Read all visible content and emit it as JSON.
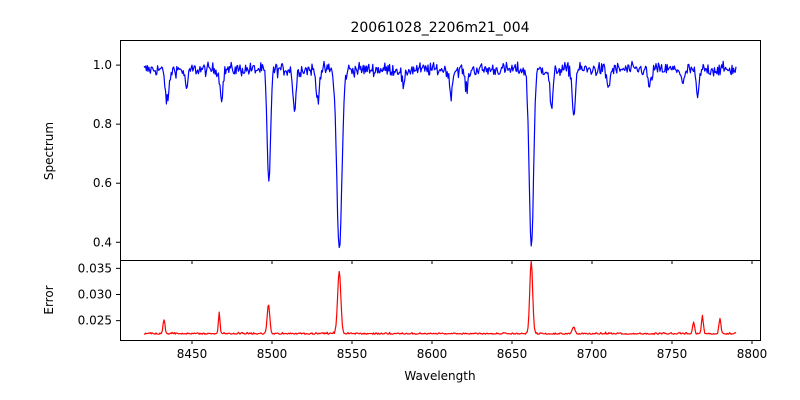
{
  "chart_data": {
    "type": "line",
    "title": "20061028_2206m21_004",
    "xlabel": "Wavelength",
    "xlim": [
      8405,
      8805
    ],
    "xticks": [
      8450,
      8500,
      8550,
      8600,
      8650,
      8700,
      8750,
      8800
    ],
    "x_range": [
      8420,
      8790
    ],
    "grid": false,
    "panels": [
      {
        "name": "spectrum",
        "ylabel": "Spectrum",
        "ylim": [
          0.34,
          1.085
        ],
        "yticks": [
          0.4,
          0.6,
          0.8,
          1.0
        ],
        "tick_format": "1",
        "color": "#0000ff",
        "continuum": 0.985,
        "noise": 0.022,
        "lines": [
          {
            "center": 8434.5,
            "depth": 0.11,
            "width": 1.2
          },
          {
            "center": 8446.6,
            "depth": 0.06,
            "width": 1.0
          },
          {
            "center": 8468.4,
            "depth": 0.09,
            "width": 1.0
          },
          {
            "center": 8498.0,
            "depth": 0.39,
            "width": 1.05
          },
          {
            "center": 8514.1,
            "depth": 0.14,
            "width": 0.9
          },
          {
            "center": 8528.5,
            "depth": 0.1,
            "width": 1.0
          },
          {
            "center": 8542.1,
            "depth": 0.61,
            "width": 1.6
          },
          {
            "center": 8582.3,
            "depth": 0.06,
            "width": 1.0
          },
          {
            "center": 8611.8,
            "depth": 0.08,
            "width": 1.0
          },
          {
            "center": 8621.6,
            "depth": 0.07,
            "width": 1.0
          },
          {
            "center": 8662.1,
            "depth": 0.6,
            "width": 1.35
          },
          {
            "center": 8674.7,
            "depth": 0.13,
            "width": 1.0
          },
          {
            "center": 8688.6,
            "depth": 0.16,
            "width": 0.9
          },
          {
            "center": 8710.2,
            "depth": 0.06,
            "width": 1.0
          },
          {
            "center": 8736.0,
            "depth": 0.06,
            "width": 1.0
          },
          {
            "center": 8757.0,
            "depth": 0.05,
            "width": 1.0
          },
          {
            "center": 8766.0,
            "depth": 0.09,
            "width": 1.0
          }
        ]
      },
      {
        "name": "error",
        "ylabel": "Error",
        "ylim": [
          0.0213,
          0.0366
        ],
        "yticks": [
          0.025,
          0.03,
          0.035
        ],
        "tick_format": "3",
        "color": "#ff0000",
        "baseline": 0.0224,
        "noise": 0.00035,
        "peaks": [
          {
            "center": 8432.5,
            "height": 0.0027,
            "width": 0.6
          },
          {
            "center": 8467.0,
            "height": 0.0041,
            "width": 0.5
          },
          {
            "center": 8497.8,
            "height": 0.0057,
            "width": 0.8
          },
          {
            "center": 8542.0,
            "height": 0.0118,
            "width": 1.0
          },
          {
            "center": 8662.0,
            "height": 0.0138,
            "width": 0.9
          },
          {
            "center": 8688.5,
            "height": 0.0012,
            "width": 0.8
          },
          {
            "center": 8763.5,
            "height": 0.0023,
            "width": 0.6
          },
          {
            "center": 8769.0,
            "height": 0.0032,
            "width": 0.6
          },
          {
            "center": 8780.0,
            "height": 0.0029,
            "width": 0.6
          }
        ]
      }
    ]
  }
}
